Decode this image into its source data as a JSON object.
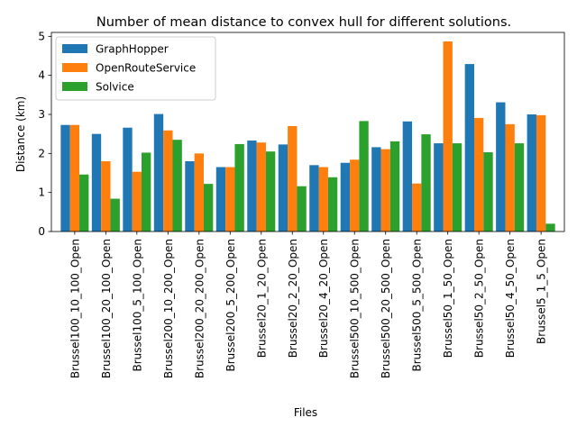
{
  "chart_data": {
    "type": "bar",
    "title": "Number of mean distance to convex hull for different solutions.",
    "xlabel": "Files",
    "ylabel": "Distance (km)",
    "ylim": [
      0,
      5.1
    ],
    "yticks": [
      0,
      1,
      2,
      3,
      4,
      5
    ],
    "grid": false,
    "legend_position": "top-left",
    "categories": [
      "Brussel100_10_100_Open",
      "Brussel100_20_100_Open",
      "Brussel100_5_100_Open",
      "Brussel200_10_200_Open",
      "Brussel200_20_200_Open",
      "Brussel200_5_200_Open",
      "Brussel20_1_20_Open",
      "Brussel20_2_20_Open",
      "Brussel20_4_20_Open",
      "Brussel500_10_500_Open",
      "Brussel500_20_500_Open",
      "Brussel500_5_500_Open",
      "Brussel50_1_50_Open",
      "Brussel50_2_50_Open",
      "Brussel50_4_50_Open",
      "Brussel5_1_5_Open"
    ],
    "series": [
      {
        "name": "GraphHopper",
        "color": "#1f77b4",
        "values": [
          2.73,
          2.5,
          2.66,
          3.01,
          1.8,
          1.65,
          2.33,
          2.23,
          1.7,
          1.76,
          2.16,
          2.82,
          2.26,
          4.29,
          3.31,
          3.0
        ]
      },
      {
        "name": "OpenRouteService",
        "color": "#ff7f0e",
        "values": [
          2.73,
          1.8,
          1.53,
          2.59,
          2.0,
          1.65,
          2.28,
          2.7,
          1.65,
          1.84,
          2.11,
          1.23,
          4.87,
          2.91,
          2.75,
          2.98
        ]
      },
      {
        "name": "Solvice",
        "color": "#2ca02c",
        "values": [
          1.46,
          0.84,
          2.02,
          2.35,
          1.22,
          2.24,
          2.05,
          1.16,
          1.39,
          2.83,
          2.31,
          2.49,
          2.26,
          2.03,
          2.26,
          0.2
        ]
      }
    ]
  }
}
